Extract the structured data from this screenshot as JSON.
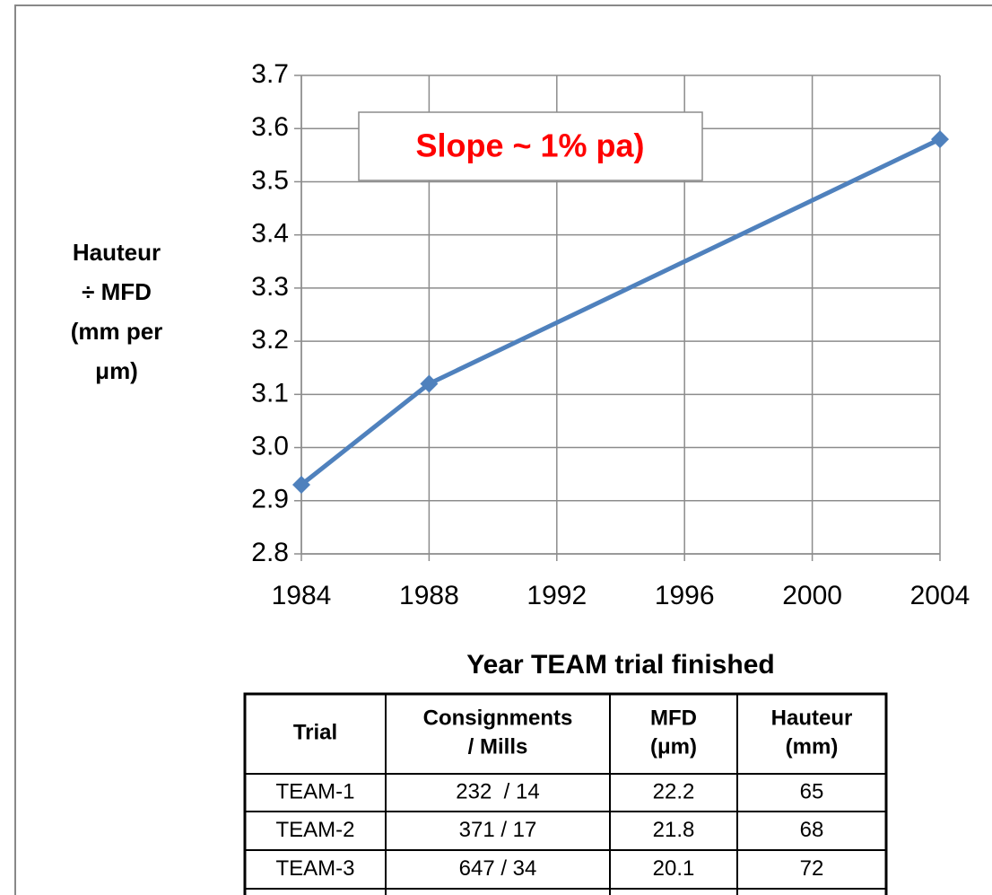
{
  "chart_data": {
    "type": "line",
    "ylabel": [
      "Hauteur",
      "÷ MFD",
      "(mm per",
      "μm)"
    ],
    "xlabel": "Year TEAM trial finished",
    "annotation": "Slope ~ 1% pa)",
    "x": [
      1984,
      1988,
      2004
    ],
    "series": [
      {
        "name": "Hauteur ÷ MFD",
        "color": "#4f81bd",
        "values": [
          2.93,
          3.12,
          3.58
        ]
      }
    ],
    "xlim": [
      1984,
      2004
    ],
    "xticks": [
      1984,
      1988,
      1992,
      1996,
      2000,
      2004
    ],
    "ylim": [
      2.8,
      3.7
    ],
    "yticks": [
      2.8,
      2.9,
      {
        "value": 3,
        "label": "3.0"
      },
      3.1,
      3.2,
      3.3,
      3.4,
      3.5,
      3.6,
      3.7
    ],
    "grid": true
  },
  "table": {
    "header": [
      [
        "Trial"
      ],
      [
        "Consignments",
        "/ Mills"
      ],
      [
        "MFD",
        "(μm)"
      ],
      [
        "Hauteur",
        "(mm)"
      ]
    ],
    "rows": [
      [
        "TEAM-1",
        "232  / 14",
        "22.2",
        "65"
      ],
      [
        "TEAM-2",
        "371 / 17",
        "21.8",
        "68"
      ],
      [
        "TEAM-3",
        "647 / 34",
        "20.1",
        "72"
      ]
    ]
  }
}
